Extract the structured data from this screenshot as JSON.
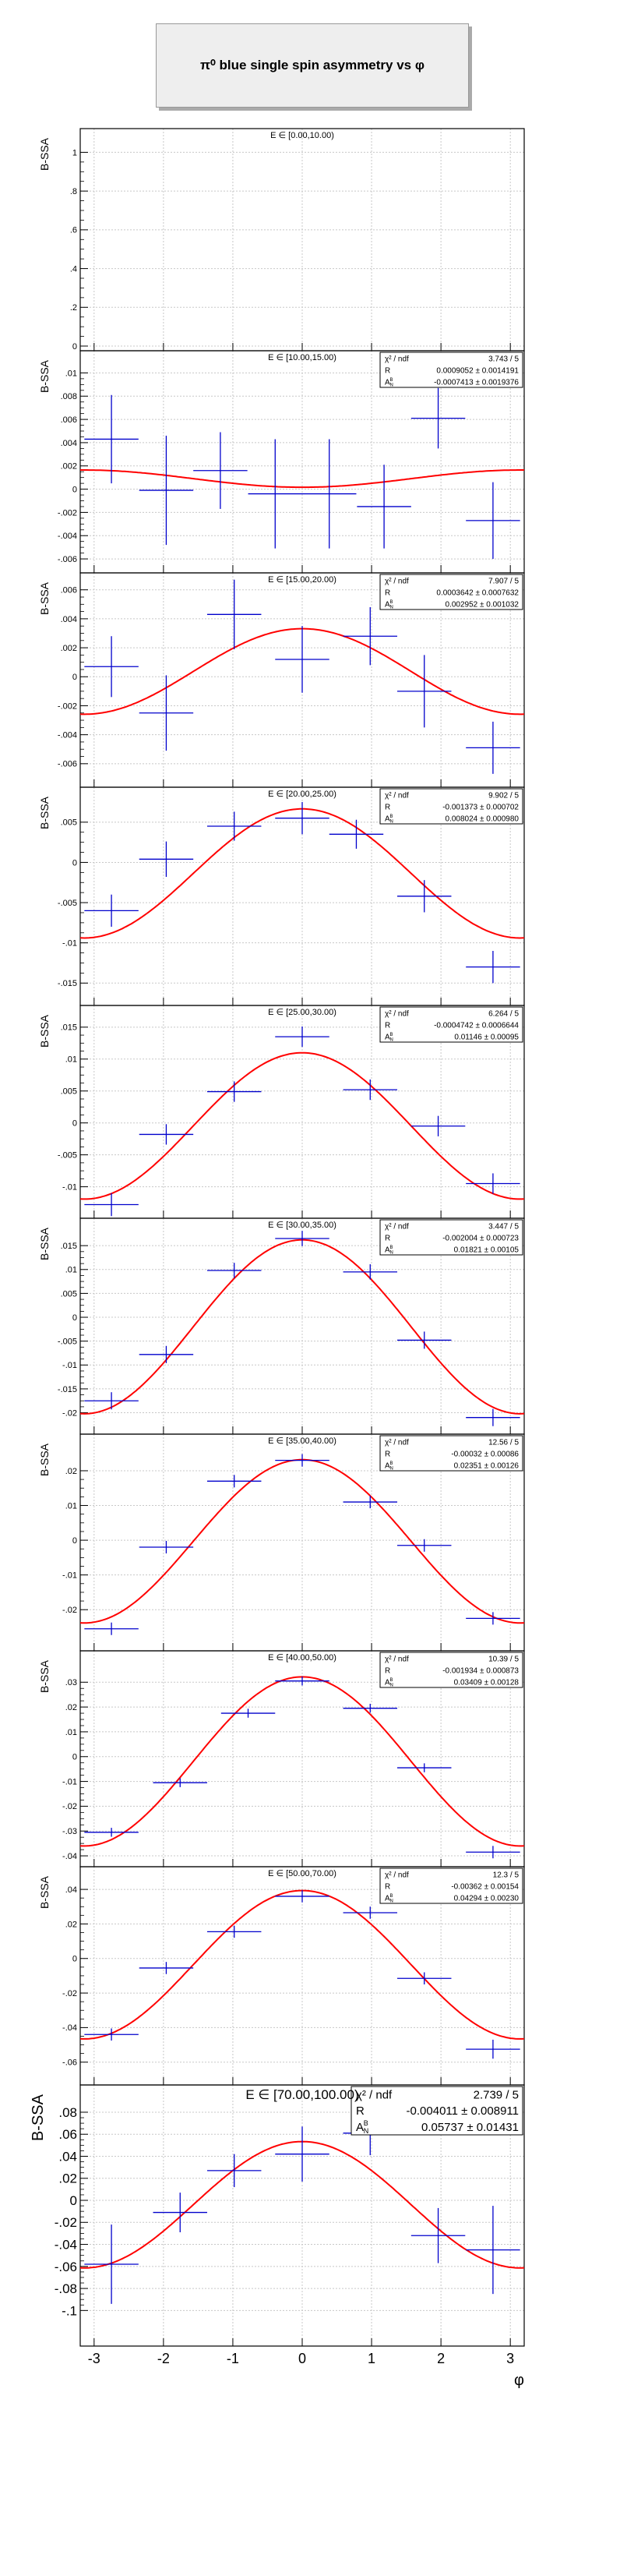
{
  "title": "π⁰ blue single spin asymmetry vs φ",
  "chart_data": {
    "type": "scatter",
    "title": "π⁰ blue single spin asymmetry vs φ",
    "xlabel": "φ",
    "ylabel": "B-SSA",
    "xlim": [
      -3.2,
      3.2
    ],
    "x_ticks": [
      -3,
      -2,
      -1,
      0,
      1,
      2,
      3
    ],
    "grid": true,
    "fit_function": "R + A_N^B · cos(φ)",
    "panels": [
      {
        "label": "E ∈ [0.00,10.00)",
        "ylim": [
          0,
          1.05
        ],
        "yticks": [
          0,
          0.2,
          0.4,
          0.6,
          0.8,
          1
        ],
        "points": [],
        "stats": null
      },
      {
        "label": "E ∈ [10.00,15.00)",
        "ylim": [
          -0.0068,
          0.0107
        ],
        "yticks": [
          -0.006,
          -0.004,
          -0.002,
          0,
          0.002,
          0.004,
          0.006,
          0.008,
          0.01
        ],
        "points": [
          {
            "x": -2.75,
            "y": 0.0043,
            "xerr": 0.39,
            "yerr": 0.0038
          },
          {
            "x": -1.96,
            "y": -0.0001,
            "xerr": 0.39,
            "yerr": 0.0047
          },
          {
            "x": -1.18,
            "y": 0.0016,
            "xerr": 0.39,
            "yerr": 0.0033
          },
          {
            "x": -0.39,
            "y": -0.0004,
            "xerr": 0.39,
            "yerr": 0.0047
          },
          {
            "x": 0.39,
            "y": -0.0004,
            "xerr": 0.39,
            "yerr": 0.0047
          },
          {
            "x": 1.18,
            "y": -0.0015,
            "xerr": 0.39,
            "yerr": 0.0036
          },
          {
            "x": 1.96,
            "y": 0.0061,
            "xerr": 0.39,
            "yerr": 0.0026
          },
          {
            "x": 2.75,
            "y": -0.0027,
            "xerr": 0.39,
            "yerr": 0.0033
          }
        ],
        "stats": {
          "chi2_ndf": "3.743 / 5",
          "R": "0.0009052 ± 0.0014191",
          "A": "-0.0007413 ± 0.0019376",
          "R_val": 0.0009052,
          "A_val": -0.0007413
        }
      },
      {
        "label": "E ∈ [15.00,20.00)",
        "ylim": [
          -0.0073,
          0.0062
        ],
        "yticks": [
          -0.006,
          -0.004,
          -0.002,
          0,
          0.002,
          0.004,
          0.006
        ],
        "points": [
          {
            "x": -2.75,
            "y": 0.0007,
            "xerr": 0.39,
            "yerr": 0.0021
          },
          {
            "x": -1.96,
            "y": -0.0025,
            "xerr": 0.39,
            "yerr": 0.0026
          },
          {
            "x": -0.98,
            "y": 0.0043,
            "xerr": 0.39,
            "yerr": 0.0024
          },
          {
            "x": 0.0,
            "y": 0.0012,
            "xerr": 0.39,
            "yerr": 0.0023
          },
          {
            "x": 0.98,
            "y": 0.0028,
            "xerr": 0.39,
            "yerr": 0.002
          },
          {
            "x": 1.76,
            "y": -0.001,
            "xerr": 0.39,
            "yerr": 0.0025
          },
          {
            "x": 2.75,
            "y": -0.0049,
            "xerr": 0.39,
            "yerr": 0.0018
          }
        ],
        "stats": {
          "chi2_ndf": "7.907 / 5",
          "R": "0.0003642 ± 0.0007632",
          "A": "0.002952 ± 0.001032",
          "R_val": 0.0003642,
          "A_val": 0.002952
        }
      },
      {
        "label": "E ∈ [20.00,25.00)",
        "ylim": [
          -0.0172,
          0.0076
        ],
        "yticks": [
          -0.015,
          -0.01,
          -0.005,
          0,
          0.005
        ],
        "points": [
          {
            "x": -2.75,
            "y": -0.006,
            "xerr": 0.39,
            "yerr": 0.002
          },
          {
            "x": -1.96,
            "y": 0.0004,
            "xerr": 0.39,
            "yerr": 0.0022
          },
          {
            "x": -0.98,
            "y": 0.0045,
            "xerr": 0.39,
            "yerr": 0.0018
          },
          {
            "x": 0.0,
            "y": 0.0055,
            "xerr": 0.39,
            "yerr": 0.002
          },
          {
            "x": 0.78,
            "y": 0.0035,
            "xerr": 0.39,
            "yerr": 0.0018
          },
          {
            "x": 1.76,
            "y": -0.0042,
            "xerr": 0.39,
            "yerr": 0.002
          },
          {
            "x": 2.75,
            "y": -0.013,
            "xerr": 0.39,
            "yerr": 0.002
          }
        ],
        "stats": {
          "chi2_ndf": "9.902 / 5",
          "R": "-0.001373 ± 0.000702",
          "A": "0.008024 ± 0.000980",
          "R_val": -0.001373,
          "A_val": 0.008024
        }
      },
      {
        "label": "E ∈ [25.00,30.00)",
        "ylim": [
          -0.0142,
          0.0162
        ],
        "yticks": [
          -0.01,
          -0.005,
          0,
          0.005,
          0.01,
          0.015
        ],
        "points": [
          {
            "x": -2.75,
            "y": -0.0128,
            "xerr": 0.39,
            "yerr": 0.0018
          },
          {
            "x": -1.96,
            "y": -0.0018,
            "xerr": 0.39,
            "yerr": 0.0016
          },
          {
            "x": -0.98,
            "y": 0.0049,
            "xerr": 0.39,
            "yerr": 0.0016
          },
          {
            "x": 0.0,
            "y": 0.0135,
            "xerr": 0.39,
            "yerr": 0.0016
          },
          {
            "x": 0.98,
            "y": 0.0052,
            "xerr": 0.39,
            "yerr": 0.0016
          },
          {
            "x": 1.96,
            "y": -0.0005,
            "xerr": 0.39,
            "yerr": 0.0016
          },
          {
            "x": 2.75,
            "y": -0.0095,
            "xerr": 0.39,
            "yerr": 0.0016
          }
        ],
        "stats": {
          "chi2_ndf": "6.264 / 5",
          "R": "-0.0004742 ± 0.0006644",
          "A": "0.01146 ± 0.00095",
          "R_val": -0.0004742,
          "A_val": 0.01146
        }
      },
      {
        "label": "E ∈ [30.00,35.00)",
        "ylim": [
          -0.0235,
          0.0178
        ],
        "yticks": [
          -0.02,
          -0.015,
          -0.01,
          -0.005,
          0,
          0.005,
          0.01,
          0.015
        ],
        "points": [
          {
            "x": -2.75,
            "y": -0.0175,
            "xerr": 0.39,
            "yerr": 0.0018
          },
          {
            "x": -1.96,
            "y": -0.0078,
            "xerr": 0.39,
            "yerr": 0.0018
          },
          {
            "x": -0.98,
            "y": 0.0098,
            "xerr": 0.39,
            "yerr": 0.0016
          },
          {
            "x": 0.0,
            "y": 0.0165,
            "xerr": 0.39,
            "yerr": 0.0016
          },
          {
            "x": 0.98,
            "y": 0.0095,
            "xerr": 0.39,
            "yerr": 0.0016
          },
          {
            "x": 1.76,
            "y": -0.0048,
            "xerr": 0.39,
            "yerr": 0.0018
          },
          {
            "x": 2.75,
            "y": -0.021,
            "xerr": 0.39,
            "yerr": 0.0018
          }
        ],
        "stats": {
          "chi2_ndf": "3.447 / 5",
          "R": "-0.002004 ± 0.000723",
          "A": "0.01821 ± 0.00105",
          "R_val": -0.002004,
          "A_val": 0.01821
        }
      },
      {
        "label": "E ∈ [35.00,40.00)",
        "ylim": [
          -0.0305,
          0.0265
        ],
        "yticks": [
          -0.02,
          -0.01,
          0,
          0.01,
          0.02
        ],
        "points": [
          {
            "x": -2.75,
            "y": -0.0255,
            "xerr": 0.39,
            "yerr": 0.0018
          },
          {
            "x": -1.96,
            "y": -0.002,
            "xerr": 0.39,
            "yerr": 0.0018
          },
          {
            "x": -0.98,
            "y": 0.017,
            "xerr": 0.39,
            "yerr": 0.0018
          },
          {
            "x": 0.0,
            "y": 0.023,
            "xerr": 0.39,
            "yerr": 0.0018
          },
          {
            "x": 0.98,
            "y": 0.011,
            "xerr": 0.39,
            "yerr": 0.0018
          },
          {
            "x": 1.76,
            "y": -0.0015,
            "xerr": 0.39,
            "yerr": 0.0018
          },
          {
            "x": 2.75,
            "y": -0.0225,
            "xerr": 0.39,
            "yerr": 0.0018
          }
        ],
        "stats": {
          "chi2_ndf": "12.56 / 5",
          "R": "-0.00032 ± 0.00086",
          "A": "0.02351 ± 0.00126",
          "R_val": -0.00032,
          "A_val": 0.02351
        }
      },
      {
        "label": "E ∈ [40.00,50.00)",
        "ylim": [
          -0.0425,
          0.037
        ],
        "yticks": [
          -0.04,
          -0.03,
          -0.02,
          -0.01,
          0,
          0.01,
          0.02,
          0.03
        ],
        "points": [
          {
            "x": -2.75,
            "y": -0.0305,
            "xerr": 0.39,
            "yerr": 0.0018
          },
          {
            "x": -1.76,
            "y": -0.0105,
            "xerr": 0.39,
            "yerr": 0.0018
          },
          {
            "x": -0.78,
            "y": 0.0175,
            "xerr": 0.39,
            "yerr": 0.0018
          },
          {
            "x": 0.0,
            "y": 0.0305,
            "xerr": 0.39,
            "yerr": 0.0018
          },
          {
            "x": 0.98,
            "y": 0.0195,
            "xerr": 0.39,
            "yerr": 0.0018
          },
          {
            "x": 1.76,
            "y": -0.0045,
            "xerr": 0.39,
            "yerr": 0.0018
          },
          {
            "x": 2.75,
            "y": -0.0385,
            "xerr": 0.39,
            "yerr": 0.0025
          }
        ],
        "stats": {
          "chi2_ndf": "10.39 / 5",
          "R": "-0.001934 ± 0.000873",
          "A": "0.03409 ± 0.00128",
          "R_val": -0.001934,
          "A_val": 0.03409
        }
      },
      {
        "label": "E ∈ [50.00,70.00)",
        "ylim": [
          -0.0705,
          0.045
        ],
        "yticks": [
          -0.06,
          -0.04,
          -0.02,
          0,
          0.02,
          0.04
        ],
        "points": [
          {
            "x": -2.75,
            "y": -0.044,
            "xerr": 0.39,
            "yerr": 0.0035
          },
          {
            "x": -1.96,
            "y": -0.0055,
            "xerr": 0.39,
            "yerr": 0.0035
          },
          {
            "x": -0.98,
            "y": 0.0155,
            "xerr": 0.39,
            "yerr": 0.0035
          },
          {
            "x": 0.0,
            "y": 0.036,
            "xerr": 0.39,
            "yerr": 0.0035
          },
          {
            "x": 0.98,
            "y": 0.0265,
            "xerr": 0.39,
            "yerr": 0.0035
          },
          {
            "x": 1.76,
            "y": -0.0115,
            "xerr": 0.39,
            "yerr": 0.0035
          },
          {
            "x": 2.75,
            "y": -0.0525,
            "xerr": 0.39,
            "yerr": 0.0055
          }
        ],
        "stats": {
          "chi2_ndf": "12.3 / 5",
          "R": "-0.00362 ± 0.00154",
          "A": "0.04294 ± 0.00230",
          "R_val": -0.00362,
          "A_val": 0.04294
        }
      },
      {
        "label": "E ∈ [70.00,100.00)",
        "ylim": [
          -0.104,
          0.092
        ],
        "yticks": [
          -0.1,
          -0.08,
          -0.06,
          -0.04,
          -0.02,
          0,
          0.02,
          0.04,
          0.06,
          0.08
        ],
        "points": [
          {
            "x": -2.75,
            "y": -0.058,
            "xerr": 0.39,
            "yerr": 0.036
          },
          {
            "x": -1.76,
            "y": -0.011,
            "xerr": 0.39,
            "yerr": 0.018
          },
          {
            "x": -0.98,
            "y": 0.027,
            "xerr": 0.39,
            "yerr": 0.015
          },
          {
            "x": 0.0,
            "y": 0.042,
            "xerr": 0.39,
            "yerr": 0.025
          },
          {
            "x": 0.98,
            "y": 0.061,
            "xerr": 0.39,
            "yerr": 0.02
          },
          {
            "x": 1.96,
            "y": -0.032,
            "xerr": 0.39,
            "yerr": 0.025
          },
          {
            "x": 2.75,
            "y": -0.045,
            "xerr": 0.39,
            "yerr": 0.04
          }
        ],
        "stats": {
          "chi2_ndf": "2.739 / 5",
          "R": "-0.004011 ± 0.008911",
          "A": "0.05737 ± 0.01431",
          "R_val": -0.004011,
          "A_val": 0.05737
        }
      }
    ]
  },
  "colors": {
    "points": "#0000cc",
    "fit": "#ff0000",
    "grid": "#c8c8c8",
    "frame": "#000000",
    "title_bg": "#eeeeee"
  }
}
